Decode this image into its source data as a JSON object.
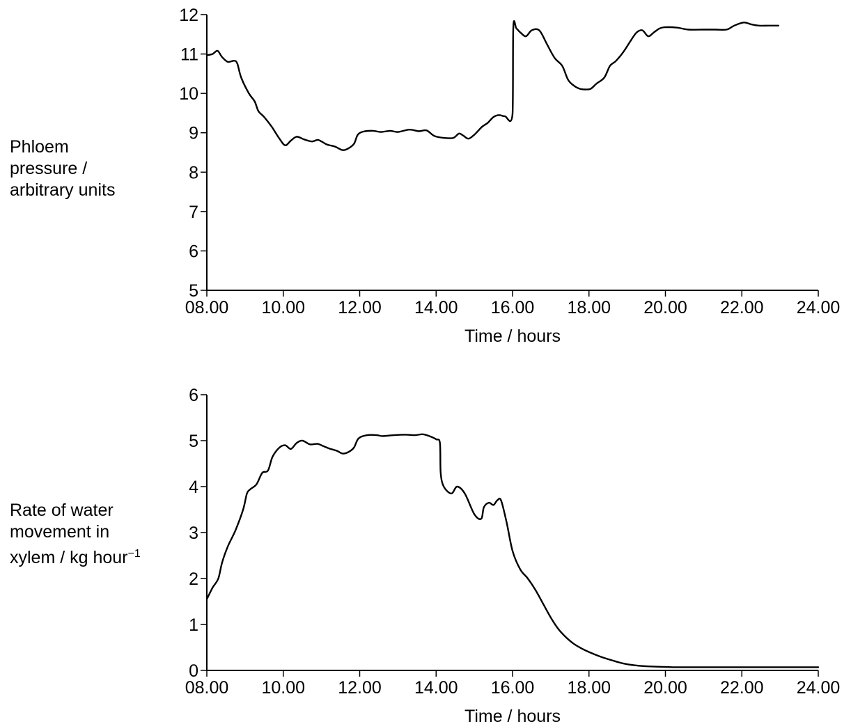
{
  "chart_data": [
    {
      "type": "line",
      "xlabel": "Time / hours",
      "ylabel": [
        "Phloem",
        "pressure /",
        "arbitrary units"
      ],
      "xlim": [
        8,
        24
      ],
      "ylim": [
        5,
        12
      ],
      "xticks": [
        8,
        10,
        12,
        14,
        16,
        18,
        20,
        22,
        24
      ],
      "xtick_labels": [
        "08.00",
        "10.00",
        "12.00",
        "14.00",
        "16.00",
        "18.00",
        "20.00",
        "22.00",
        "24.00"
      ],
      "yticks": [
        5,
        6,
        7,
        8,
        9,
        10,
        11,
        12
      ],
      "ytick_labels": [
        "5",
        "6",
        "7",
        "8",
        "9",
        "10",
        "11",
        "12"
      ],
      "grid": false,
      "series": [
        {
          "x": [
            8.0,
            8.15,
            8.28,
            8.4,
            8.55,
            8.72,
            8.8,
            8.9,
            9.1,
            9.25,
            9.35,
            9.5,
            9.7,
            9.9,
            10.05,
            10.2,
            10.35,
            10.55,
            10.75,
            10.9,
            11.0,
            11.15,
            11.35,
            11.55,
            11.7,
            11.85,
            11.95,
            12.1,
            12.35,
            12.55,
            12.8,
            13.0,
            13.3,
            13.55,
            13.75,
            13.95,
            14.2,
            14.45,
            14.6,
            14.72,
            14.85,
            15.0,
            15.2,
            15.35,
            15.5,
            15.65,
            15.8,
            16.0,
            16.02,
            16.1,
            16.2,
            16.35,
            16.5,
            16.7,
            16.9,
            17.1,
            17.3,
            17.45,
            17.6,
            17.75,
            17.9,
            18.05,
            18.2,
            18.4,
            18.55,
            18.7,
            18.9,
            19.1,
            19.25,
            19.4,
            19.55,
            19.7,
            19.85,
            20.0,
            20.3,
            20.6,
            21.0,
            21.3,
            21.6,
            21.8,
            22.05,
            22.25,
            22.45,
            22.7,
            22.96
          ],
          "y": [
            10.97,
            11.0,
            11.08,
            10.92,
            10.8,
            10.83,
            10.75,
            10.4,
            10.0,
            9.8,
            9.55,
            9.4,
            9.15,
            8.85,
            8.68,
            8.8,
            8.9,
            8.83,
            8.78,
            8.82,
            8.78,
            8.7,
            8.65,
            8.56,
            8.6,
            8.72,
            8.95,
            9.03,
            9.05,
            9.02,
            9.05,
            9.02,
            9.08,
            9.04,
            9.06,
            8.92,
            8.87,
            8.87,
            8.98,
            8.92,
            8.85,
            8.95,
            9.15,
            9.25,
            9.4,
            9.45,
            9.42,
            9.48,
            11.68,
            11.65,
            11.55,
            11.45,
            11.6,
            11.6,
            11.25,
            10.9,
            10.7,
            10.35,
            10.2,
            10.12,
            10.1,
            10.12,
            10.25,
            10.4,
            10.7,
            10.82,
            11.05,
            11.35,
            11.55,
            11.6,
            11.45,
            11.55,
            11.65,
            11.68,
            11.67,
            11.62,
            11.62,
            11.62,
            11.62,
            11.72,
            11.8,
            11.75,
            11.72,
            11.72,
            11.72
          ]
        }
      ]
    },
    {
      "type": "line",
      "xlabel": "Time / hours",
      "ylabel": [
        "Rate of water",
        "movement in",
        "xylem / kg hour",
        "−1"
      ],
      "xlim": [
        8,
        24
      ],
      "ylim": [
        0,
        6
      ],
      "xticks": [
        8,
        10,
        12,
        14,
        16,
        18,
        20,
        22,
        24
      ],
      "xtick_labels": [
        "08.00",
        "10.00",
        "12.00",
        "14.00",
        "16.00",
        "18.00",
        "20.00",
        "22.00",
        "24.00"
      ],
      "yticks": [
        0,
        1,
        2,
        3,
        4,
        5,
        6
      ],
      "ytick_labels": [
        "0",
        "1",
        "2",
        "3",
        "4",
        "5",
        "6"
      ],
      "grid": false,
      "series": [
        {
          "x": [
            8.0,
            8.15,
            8.3,
            8.4,
            8.55,
            8.75,
            8.95,
            9.05,
            9.15,
            9.3,
            9.45,
            9.6,
            9.72,
            9.9,
            10.05,
            10.2,
            10.35,
            10.5,
            10.7,
            10.9,
            11.05,
            11.2,
            11.4,
            11.55,
            11.7,
            11.85,
            11.97,
            12.2,
            12.45,
            12.6,
            12.9,
            13.2,
            13.45,
            13.65,
            13.82,
            14.0,
            14.1,
            14.12,
            14.2,
            14.4,
            14.55,
            14.75,
            15.0,
            15.18,
            15.25,
            15.38,
            15.5,
            15.6,
            15.7,
            15.85,
            16.0,
            16.2,
            16.4,
            16.6,
            16.8,
            17.0,
            17.2,
            17.4,
            17.6,
            17.8,
            18.0,
            18.3,
            18.6,
            18.9,
            19.2,
            19.5,
            19.8,
            20.2,
            20.6,
            21.0,
            21.5,
            22.0,
            22.5,
            23.0,
            23.5,
            24.0
          ],
          "y": [
            1.55,
            1.8,
            2.0,
            2.35,
            2.7,
            3.05,
            3.5,
            3.85,
            3.95,
            4.05,
            4.3,
            4.35,
            4.65,
            4.85,
            4.9,
            4.82,
            4.95,
            5.0,
            4.92,
            4.93,
            4.88,
            4.83,
            4.78,
            4.72,
            4.75,
            4.85,
            5.05,
            5.12,
            5.12,
            5.1,
            5.12,
            5.13,
            5.12,
            5.14,
            5.1,
            5.03,
            4.95,
            4.3,
            4.0,
            3.85,
            4.0,
            3.85,
            3.4,
            3.3,
            3.55,
            3.65,
            3.6,
            3.7,
            3.7,
            3.2,
            2.6,
            2.2,
            2.0,
            1.75,
            1.45,
            1.15,
            0.9,
            0.72,
            0.58,
            0.48,
            0.4,
            0.3,
            0.22,
            0.15,
            0.11,
            0.09,
            0.08,
            0.07,
            0.07,
            0.07,
            0.07,
            0.07,
            0.07,
            0.07,
            0.07,
            0.07
          ]
        }
      ]
    }
  ]
}
